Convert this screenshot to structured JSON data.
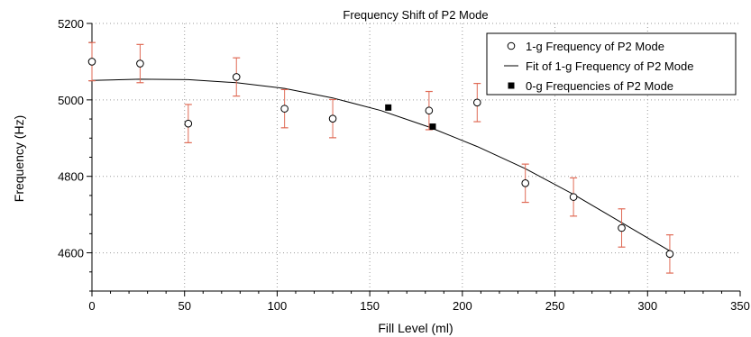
{
  "chart_data": {
    "type": "scatter",
    "title": "Frequency Shift of P2 Mode",
    "xlabel": "Fill Level (ml)",
    "ylabel": "Frequency (Hz)",
    "xlim": [
      0,
      350
    ],
    "ylim": [
      4500,
      5200
    ],
    "xticks": [
      0,
      50,
      100,
      150,
      200,
      250,
      300,
      350
    ],
    "yticks": [
      4600,
      4800,
      5000,
      5200
    ],
    "grid": true,
    "legend_position": "top-right",
    "colors": {
      "error_bar": "#e06a55",
      "grid": "#9a9a9a",
      "fit_line": "#000000",
      "marker": "#000000"
    },
    "series": [
      {
        "name": "1-g Frequency of P2 Mode",
        "marker": "open-circle",
        "x": [
          0,
          26,
          52,
          78,
          104,
          130,
          182,
          208,
          234,
          260,
          286,
          312
        ],
        "y": [
          5100,
          5095,
          4938,
          5060,
          4977,
          4951,
          4972,
          4993,
          4782,
          4746,
          4665,
          4597
        ],
        "error": [
          50,
          50,
          50,
          50,
          50,
          50,
          50,
          50,
          50,
          50,
          50,
          50
        ]
      },
      {
        "name": "Fit of 1-g Frequency of P2 Mode",
        "marker": "line",
        "x": [
          0,
          26,
          52,
          78,
          104,
          130,
          156,
          182,
          208,
          234,
          260,
          286,
          312
        ],
        "y": [
          5051,
          5054,
          5053,
          5045,
          5030,
          5005,
          4972,
          4929,
          4878,
          4820,
          4753,
          4679,
          4605
        ]
      },
      {
        "name": "0-g Frequencies of P2 Mode",
        "marker": "filled-square",
        "x": [
          160,
          184
        ],
        "y": [
          4980,
          4930
        ]
      }
    ]
  }
}
